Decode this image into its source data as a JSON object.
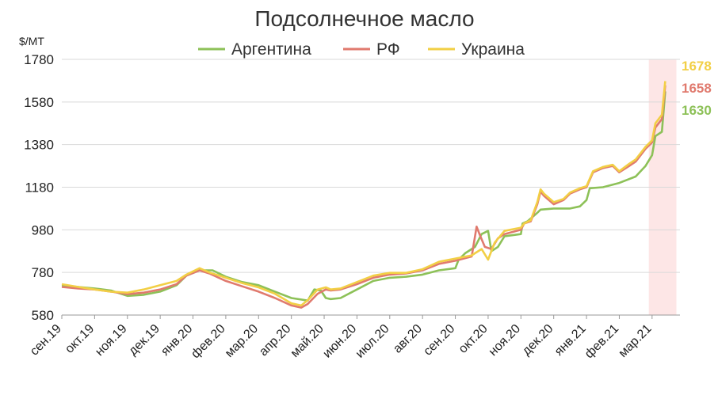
{
  "chart_data": {
    "type": "line",
    "title": "Подсолнечное масло",
    "ylabel": "$/MT",
    "ylim": [
      580,
      1780
    ],
    "yticks": [
      580,
      780,
      980,
      1180,
      1380,
      1580,
      1780
    ],
    "grid": true,
    "legend_position": "top",
    "x_tick_labels": [
      "сен.19",
      "окт.19",
      "ноя.19",
      "дек.19",
      "янв.20",
      "фев.20",
      "мар.20",
      "апр.20",
      "май.20",
      "июн.20",
      "июл.20",
      "авг.20",
      "сен.20",
      "окт.20",
      "ноя.20",
      "дек.20",
      "янв.21",
      "фев.21",
      "мар.21"
    ],
    "highlight": {
      "from": 17.9,
      "to": 18.5,
      "color": "#fde6e6"
    },
    "series": [
      {
        "name": "Аргентина",
        "color": "#8dc158",
        "end_label": "1630",
        "points": [
          [
            0,
            720
          ],
          [
            0.5,
            712
          ],
          [
            1,
            705
          ],
          [
            1.5,
            695
          ],
          [
            2,
            670
          ],
          [
            2.5,
            675
          ],
          [
            3,
            690
          ],
          [
            3.5,
            720
          ],
          [
            3.8,
            765
          ],
          [
            4.2,
            790
          ],
          [
            4.6,
            790
          ],
          [
            5,
            760
          ],
          [
            5.5,
            735
          ],
          [
            6,
            720
          ],
          [
            6.5,
            690
          ],
          [
            7,
            660
          ],
          [
            7.5,
            648
          ],
          [
            7.7,
            700
          ],
          [
            7.9,
            695
          ],
          [
            8.05,
            660
          ],
          [
            8.2,
            655
          ],
          [
            8.5,
            660
          ],
          [
            9,
            700
          ],
          [
            9.5,
            740
          ],
          [
            10,
            755
          ],
          [
            10.5,
            760
          ],
          [
            11,
            770
          ],
          [
            11.5,
            790
          ],
          [
            12,
            800
          ],
          [
            12.1,
            840
          ],
          [
            12.3,
            870
          ],
          [
            12.5,
            890
          ],
          [
            12.6,
            900
          ],
          [
            12.8,
            960
          ],
          [
            13,
            975
          ],
          [
            13.1,
            880
          ],
          [
            13.3,
            900
          ],
          [
            13.5,
            950
          ],
          [
            14,
            960
          ],
          [
            14.05,
            1010
          ],
          [
            14.2,
            1020
          ],
          [
            14.5,
            1060
          ],
          [
            14.6,
            1075
          ],
          [
            15,
            1080
          ],
          [
            15.5,
            1080
          ],
          [
            15.8,
            1090
          ],
          [
            16,
            1120
          ],
          [
            16.1,
            1175
          ],
          [
            16.5,
            1180
          ],
          [
            17,
            1200
          ],
          [
            17.5,
            1230
          ],
          [
            17.8,
            1280
          ],
          [
            18,
            1330
          ],
          [
            18.1,
            1420
          ],
          [
            18.3,
            1440
          ],
          [
            18.4,
            1630
          ]
        ]
      },
      {
        "name": "РФ",
        "color": "#e07a6e",
        "end_label": "1658",
        "points": [
          [
            0,
            712
          ],
          [
            0.5,
            705
          ],
          [
            1,
            700
          ],
          [
            1.5,
            690
          ],
          [
            2,
            678
          ],
          [
            2.5,
            685
          ],
          [
            3,
            700
          ],
          [
            3.5,
            725
          ],
          [
            3.8,
            765
          ],
          [
            4.2,
            790
          ],
          [
            4.5,
            775
          ],
          [
            5,
            740
          ],
          [
            5.5,
            715
          ],
          [
            6,
            690
          ],
          [
            6.5,
            660
          ],
          [
            7,
            625
          ],
          [
            7.3,
            615
          ],
          [
            7.5,
            632
          ],
          [
            7.8,
            680
          ],
          [
            8.05,
            700
          ],
          [
            8.2,
            695
          ],
          [
            8.5,
            700
          ],
          [
            9,
            725
          ],
          [
            9.5,
            755
          ],
          [
            10,
            770
          ],
          [
            10.5,
            775
          ],
          [
            11,
            790
          ],
          [
            11.5,
            820
          ],
          [
            12,
            835
          ],
          [
            12.5,
            855
          ],
          [
            12.65,
            995
          ],
          [
            12.75,
            955
          ],
          [
            12.9,
            900
          ],
          [
            13.1,
            890
          ],
          [
            13.3,
            940
          ],
          [
            13.5,
            960
          ],
          [
            14,
            980
          ],
          [
            14.1,
            1010
          ],
          [
            14.3,
            1020
          ],
          [
            14.5,
            1100
          ],
          [
            14.6,
            1160
          ],
          [
            14.7,
            1140
          ],
          [
            15,
            1100
          ],
          [
            15.3,
            1120
          ],
          [
            15.5,
            1150
          ],
          [
            15.8,
            1170
          ],
          [
            16,
            1180
          ],
          [
            16.2,
            1250
          ],
          [
            16.5,
            1270
          ],
          [
            16.8,
            1280
          ],
          [
            17,
            1250
          ],
          [
            17.3,
            1280
          ],
          [
            17.5,
            1300
          ],
          [
            17.8,
            1360
          ],
          [
            18,
            1390
          ],
          [
            18.1,
            1460
          ],
          [
            18.3,
            1500
          ],
          [
            18.4,
            1658
          ]
        ]
      },
      {
        "name": "Украина",
        "color": "#f2cf45",
        "end_label": "1678",
        "points": [
          [
            0,
            725
          ],
          [
            0.5,
            712
          ],
          [
            1,
            700
          ],
          [
            1.5,
            690
          ],
          [
            2,
            685
          ],
          [
            2.5,
            700
          ],
          [
            3,
            720
          ],
          [
            3.5,
            740
          ],
          [
            3.8,
            770
          ],
          [
            4.2,
            800
          ],
          [
            4.5,
            780
          ],
          [
            5,
            755
          ],
          [
            5.5,
            730
          ],
          [
            6,
            710
          ],
          [
            6.5,
            680
          ],
          [
            7,
            635
          ],
          [
            7.3,
            625
          ],
          [
            7.5,
            650
          ],
          [
            7.8,
            700
          ],
          [
            8.05,
            710
          ],
          [
            8.2,
            700
          ],
          [
            8.5,
            705
          ],
          [
            9,
            735
          ],
          [
            9.5,
            765
          ],
          [
            10,
            778
          ],
          [
            10.5,
            778
          ],
          [
            11,
            795
          ],
          [
            11.5,
            830
          ],
          [
            12,
            845
          ],
          [
            12.5,
            860
          ],
          [
            12.6,
            870
          ],
          [
            12.8,
            890
          ],
          [
            13,
            840
          ],
          [
            13.2,
            920
          ],
          [
            13.5,
            975
          ],
          [
            14,
            990
          ],
          [
            14.1,
            1010
          ],
          [
            14.3,
            1025
          ],
          [
            14.5,
            1110
          ],
          [
            14.6,
            1170
          ],
          [
            14.7,
            1150
          ],
          [
            15,
            1110
          ],
          [
            15.3,
            1125
          ],
          [
            15.5,
            1155
          ],
          [
            15.8,
            1175
          ],
          [
            16,
            1185
          ],
          [
            16.2,
            1255
          ],
          [
            16.5,
            1275
          ],
          [
            16.8,
            1285
          ],
          [
            17,
            1255
          ],
          [
            17.3,
            1290
          ],
          [
            17.5,
            1310
          ],
          [
            17.8,
            1370
          ],
          [
            18,
            1400
          ],
          [
            18.1,
            1480
          ],
          [
            18.3,
            1520
          ],
          [
            18.4,
            1678
          ]
        ]
      }
    ]
  }
}
